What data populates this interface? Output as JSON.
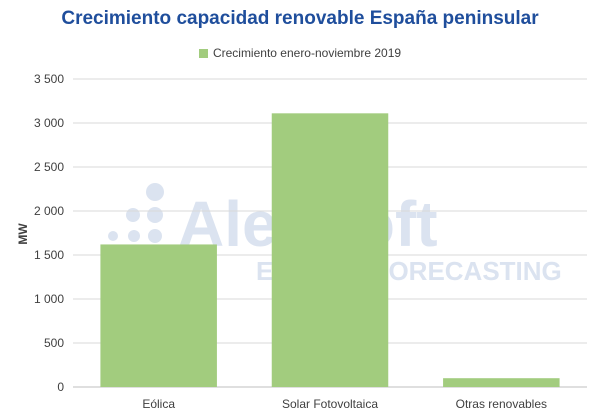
{
  "chart_data": {
    "type": "bar",
    "title": "Crecimiento capacidad renovable España peninsular",
    "ylabel": "MW",
    "xlabel": "",
    "ylim": [
      0,
      3500
    ],
    "yticks": [
      0,
      500,
      1000,
      1500,
      2000,
      2500,
      3000,
      3500
    ],
    "ytick_labels": [
      "0",
      "500",
      "1 000",
      "1 500",
      "2 000",
      "2 500",
      "3 000",
      "3 500"
    ],
    "categories": [
      "Eólica",
      "Solar Fotovoltaica",
      "Otras renovables"
    ],
    "series": [
      {
        "name": "Crecimiento enero-noviembre 2019",
        "values": [
          1620,
          3110,
          100
        ],
        "color": "#a2cc7e"
      }
    ],
    "grid": true,
    "legend_position": "top"
  },
  "watermark": {
    "brand": "AleaSoft",
    "tagline": "ENERGY FORECASTING"
  },
  "colors": {
    "title": "#1f4e9c",
    "bar": "#a2cc7e",
    "grid": "#d9d9d9",
    "watermark": "#dbe3f0"
  }
}
